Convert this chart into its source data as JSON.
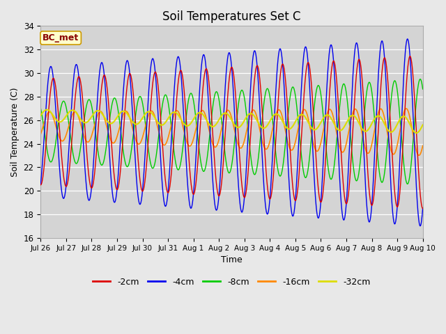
{
  "title": "Soil Temperatures Set C",
  "xlabel": "Time",
  "ylabel": "Soil Temperature (C)",
  "ylim": [
    16,
    34
  ],
  "yticks": [
    16,
    18,
    20,
    22,
    24,
    26,
    28,
    30,
    32,
    34
  ],
  "fig_bg_color": "#e8e8e8",
  "plot_bg_color": "#d4d4d4",
  "annotation": "BC_met",
  "annotation_bg": "#ffffcc",
  "annotation_border": "#cc9900",
  "annotation_text_color": "#880000",
  "colors": {
    "-2cm": "#dd0000",
    "-4cm": "#0000ee",
    "-8cm": "#00cc00",
    "-16cm": "#ff8800",
    "-32cm": "#dddd00"
  },
  "legend_labels": [
    "-2cm",
    "-4cm",
    "-8cm",
    "-16cm",
    "-32cm"
  ],
  "xtick_labels": [
    "Jul 26",
    "Jul 27",
    "Jul 28",
    "Jul 29",
    "Jul 30",
    "Jul 31",
    "Aug 1",
    "Aug 2",
    "Aug 3",
    "Aug 4",
    "Aug 5",
    "Aug 6",
    "Aug 7",
    "Aug 8",
    "Aug 9",
    "Aug 10"
  ]
}
